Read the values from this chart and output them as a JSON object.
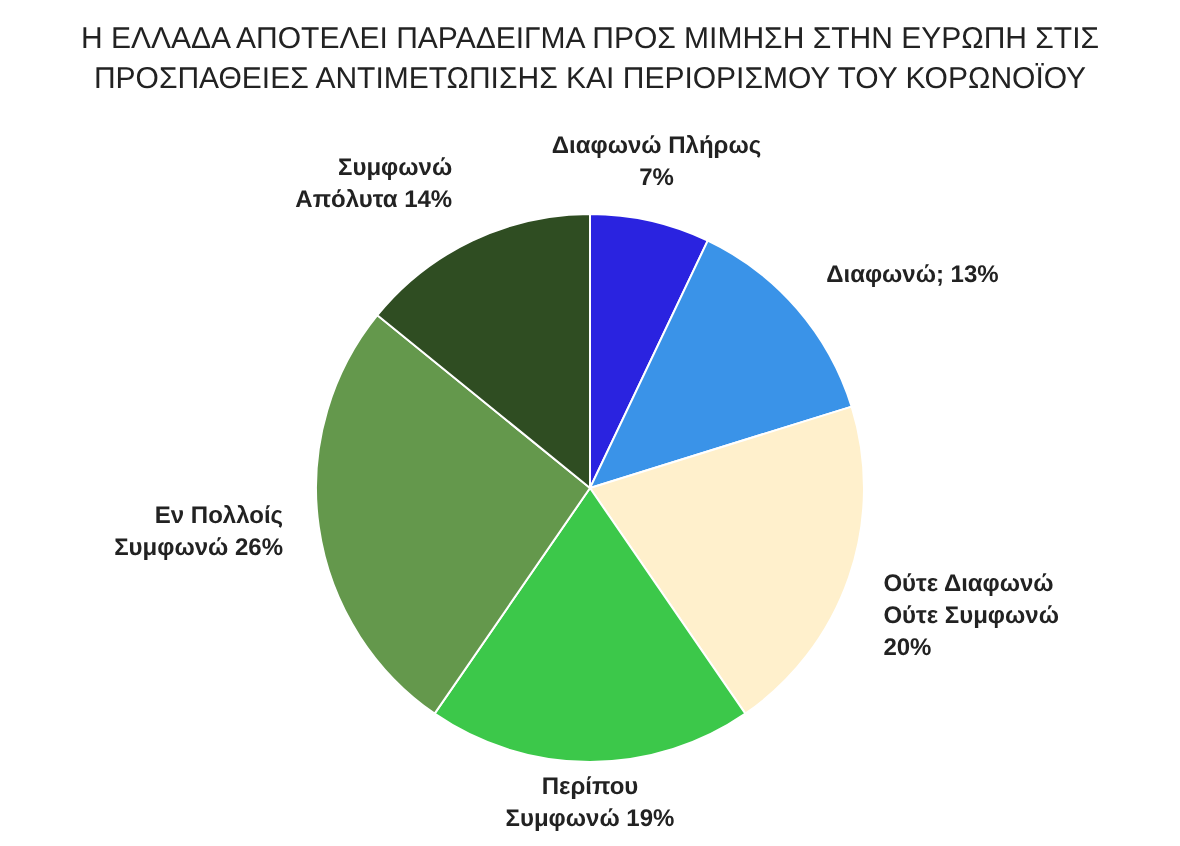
{
  "chart_data": {
    "type": "pie",
    "title": "Η ΕΛΛΑΔΑ ΑΠΟΤΕΛΕΙ ΠΑΡΑΔΕΙΓΜΑ ΠΡΟΣ ΜΙΜΗΣΗ ΣΤΗΝ ΕΥΡΩΠΗ ΣΤΙΣ ΠΡΟΣΠΑΘΕΙΕΣ ΑΝΤΙΜΕΤΩΠΙΣΗΣ ΚΑΙ ΠΕΡΙΟΡΙΣΜΟΥ ΤΟΥ ΚΟΡΩΝΟΪΟΥ",
    "categories": [
      "Διαφωνώ Πλήρως",
      "Διαφωνώ",
      "Ούτε Διαφωνώ Ούτε Συμφωνώ",
      "Περίπου Συμφωνώ",
      "Εν Πολλοίς Συμφωνώ",
      "Συμφωνώ Απόλυτα"
    ],
    "values": [
      7,
      13,
      20,
      19,
      26,
      14
    ],
    "value_labels": [
      "7%",
      "13%",
      "20%",
      "19%",
      "26%",
      "14%"
    ],
    "colors": [
      "#2a23e0",
      "#3a93e8",
      "#fff0cc",
      "#3cc84a",
      "#64984c",
      "#2f4d22"
    ]
  }
}
